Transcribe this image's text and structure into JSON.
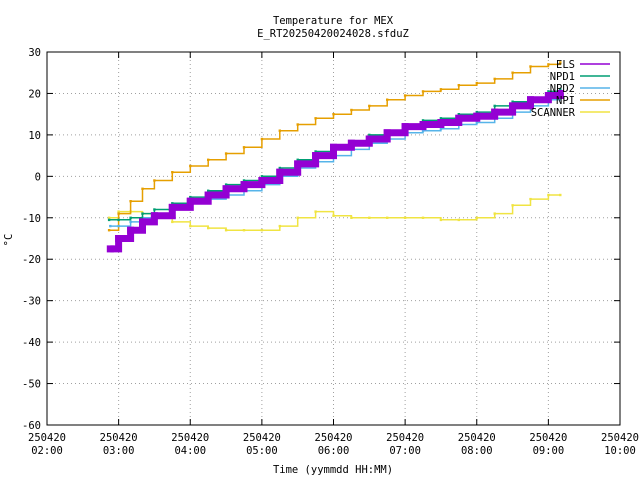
{
  "chart_data": {
    "type": "line",
    "title": "Temperature for MEX",
    "subtitle": "E_RT20250420024028.sfduZ",
    "xlabel": "Time (yymmdd HH:MM)",
    "ylabel": "°C",
    "ylim": [
      -60,
      30
    ],
    "yticks": [
      -60,
      -50,
      -40,
      -30,
      -20,
      -10,
      0,
      10,
      20,
      30
    ],
    "xlim": [
      "2025-04-20 02:00",
      "2025-04-20 10:00"
    ],
    "xticks": [
      {
        "date": "250420",
        "time": "02:00",
        "hour": 2
      },
      {
        "date": "250420",
        "time": "03:00",
        "hour": 3
      },
      {
        "date": "250420",
        "time": "04:00",
        "hour": 4
      },
      {
        "date": "250420",
        "time": "05:00",
        "hour": 5
      },
      {
        "date": "250420",
        "time": "06:00",
        "hour": 6
      },
      {
        "date": "250420",
        "time": "07:00",
        "hour": 7
      },
      {
        "date": "250420",
        "time": "08:00",
        "hour": 8
      },
      {
        "date": "250420",
        "time": "09:00",
        "hour": 9
      },
      {
        "date": "250420",
        "time": "10:00",
        "hour": 10
      }
    ],
    "grid": true,
    "legend_position": "top-right",
    "series": [
      {
        "name": "ELS",
        "color": "#9400d3",
        "width": 7,
        "x": [
          "02:53",
          "03:00",
          "03:10",
          "03:20",
          "03:30",
          "03:45",
          "04:00",
          "04:15",
          "04:30",
          "04:45",
          "05:00",
          "05:15",
          "05:30",
          "05:45",
          "06:00",
          "06:15",
          "06:30",
          "06:45",
          "07:00",
          "07:15",
          "07:30",
          "07:45",
          "08:00",
          "08:15",
          "08:30",
          "08:45",
          "09:00",
          "09:10"
        ],
        "y": [
          -17.5,
          -15,
          -13,
          -11,
          -9.5,
          -7.5,
          -6,
          -4.5,
          -3,
          -2,
          -1,
          1,
          3,
          5,
          7,
          8,
          9,
          10.5,
          12,
          12.5,
          13,
          14,
          14.5,
          15.5,
          17,
          18.5,
          19.5,
          20
        ]
      },
      {
        "name": "NPD1",
        "color": "#009e73",
        "width": 1.5,
        "x": [
          "02:52",
          "03:00",
          "03:10",
          "03:20",
          "03:30",
          "03:45",
          "04:00",
          "04:15",
          "04:30",
          "04:45",
          "05:00",
          "05:15",
          "05:30",
          "05:45",
          "06:00",
          "06:15",
          "06:30",
          "06:45",
          "07:00",
          "07:15",
          "07:30",
          "07:45",
          "08:00",
          "08:15",
          "08:30",
          "08:45",
          "09:00",
          "09:10"
        ],
        "y": [
          -10.5,
          -10.5,
          -10,
          -9,
          -8,
          -6.5,
          -5,
          -3.5,
          -2,
          -1,
          0,
          2,
          4,
          6,
          7.5,
          8.5,
          10,
          11,
          12.5,
          13.5,
          14,
          15,
          15.5,
          17,
          18,
          19,
          20.5,
          21
        ]
      },
      {
        "name": "NPD2",
        "color": "#56b4e9",
        "width": 1.5,
        "x": [
          "02:53",
          "03:00",
          "03:10",
          "03:20",
          "03:30",
          "03:45",
          "04:00",
          "04:15",
          "04:30",
          "04:45",
          "05:00",
          "05:15",
          "05:30",
          "05:45",
          "06:00",
          "06:15",
          "06:30",
          "06:45",
          "07:00",
          "07:15",
          "07:30",
          "07:45",
          "08:00",
          "08:15",
          "08:30",
          "08:45",
          "09:00",
          "09:10"
        ],
        "y": [
          -12,
          -12,
          -11,
          -10,
          -9,
          -8,
          -6.5,
          -5.5,
          -4.5,
          -3.5,
          -2,
          0,
          2,
          3.5,
          5,
          6.5,
          8,
          9,
          10.5,
          11,
          11.5,
          12.5,
          13,
          14,
          15.5,
          17,
          18.5,
          19
        ]
      },
      {
        "name": "NPI",
        "color": "#e69f00",
        "width": 1.5,
        "x": [
          "02:52",
          "03:00",
          "03:10",
          "03:20",
          "03:30",
          "03:45",
          "04:00",
          "04:15",
          "04:30",
          "04:45",
          "05:00",
          "05:15",
          "05:30",
          "05:45",
          "06:00",
          "06:15",
          "06:30",
          "06:45",
          "07:00",
          "07:15",
          "07:30",
          "07:45",
          "08:00",
          "08:15",
          "08:30",
          "08:45",
          "09:00",
          "09:10"
        ],
        "y": [
          -13,
          -9,
          -6,
          -3,
          -1,
          1,
          2.5,
          4,
          5.5,
          7,
          9,
          11,
          12.5,
          14,
          15,
          16,
          17,
          18.5,
          19.5,
          20.5,
          21,
          22,
          22.5,
          23.5,
          25,
          26.5,
          27,
          27.5
        ]
      },
      {
        "name": "SCANNER",
        "color": "#f0e442",
        "width": 1.5,
        "x": [
          "02:52",
          "03:00",
          "03:10",
          "03:20",
          "03:30",
          "03:45",
          "04:00",
          "04:15",
          "04:30",
          "04:45",
          "05:00",
          "05:15",
          "05:30",
          "05:45",
          "06:00",
          "06:15",
          "06:30",
          "06:45",
          "07:00",
          "07:15",
          "07:30",
          "07:45",
          "08:00",
          "08:15",
          "08:30",
          "08:45",
          "09:00",
          "09:10"
        ],
        "y": [
          -10,
          -8.5,
          -8.5,
          -9,
          -10,
          -11,
          -12,
          -12.5,
          -13,
          -13,
          -13,
          -12,
          -10,
          -8.5,
          -9.5,
          -10,
          -10,
          -10,
          -10,
          -10,
          -10.5,
          -10.5,
          -10,
          -9,
          -7,
          -5.5,
          -4.5,
          -4.5
        ]
      }
    ]
  }
}
